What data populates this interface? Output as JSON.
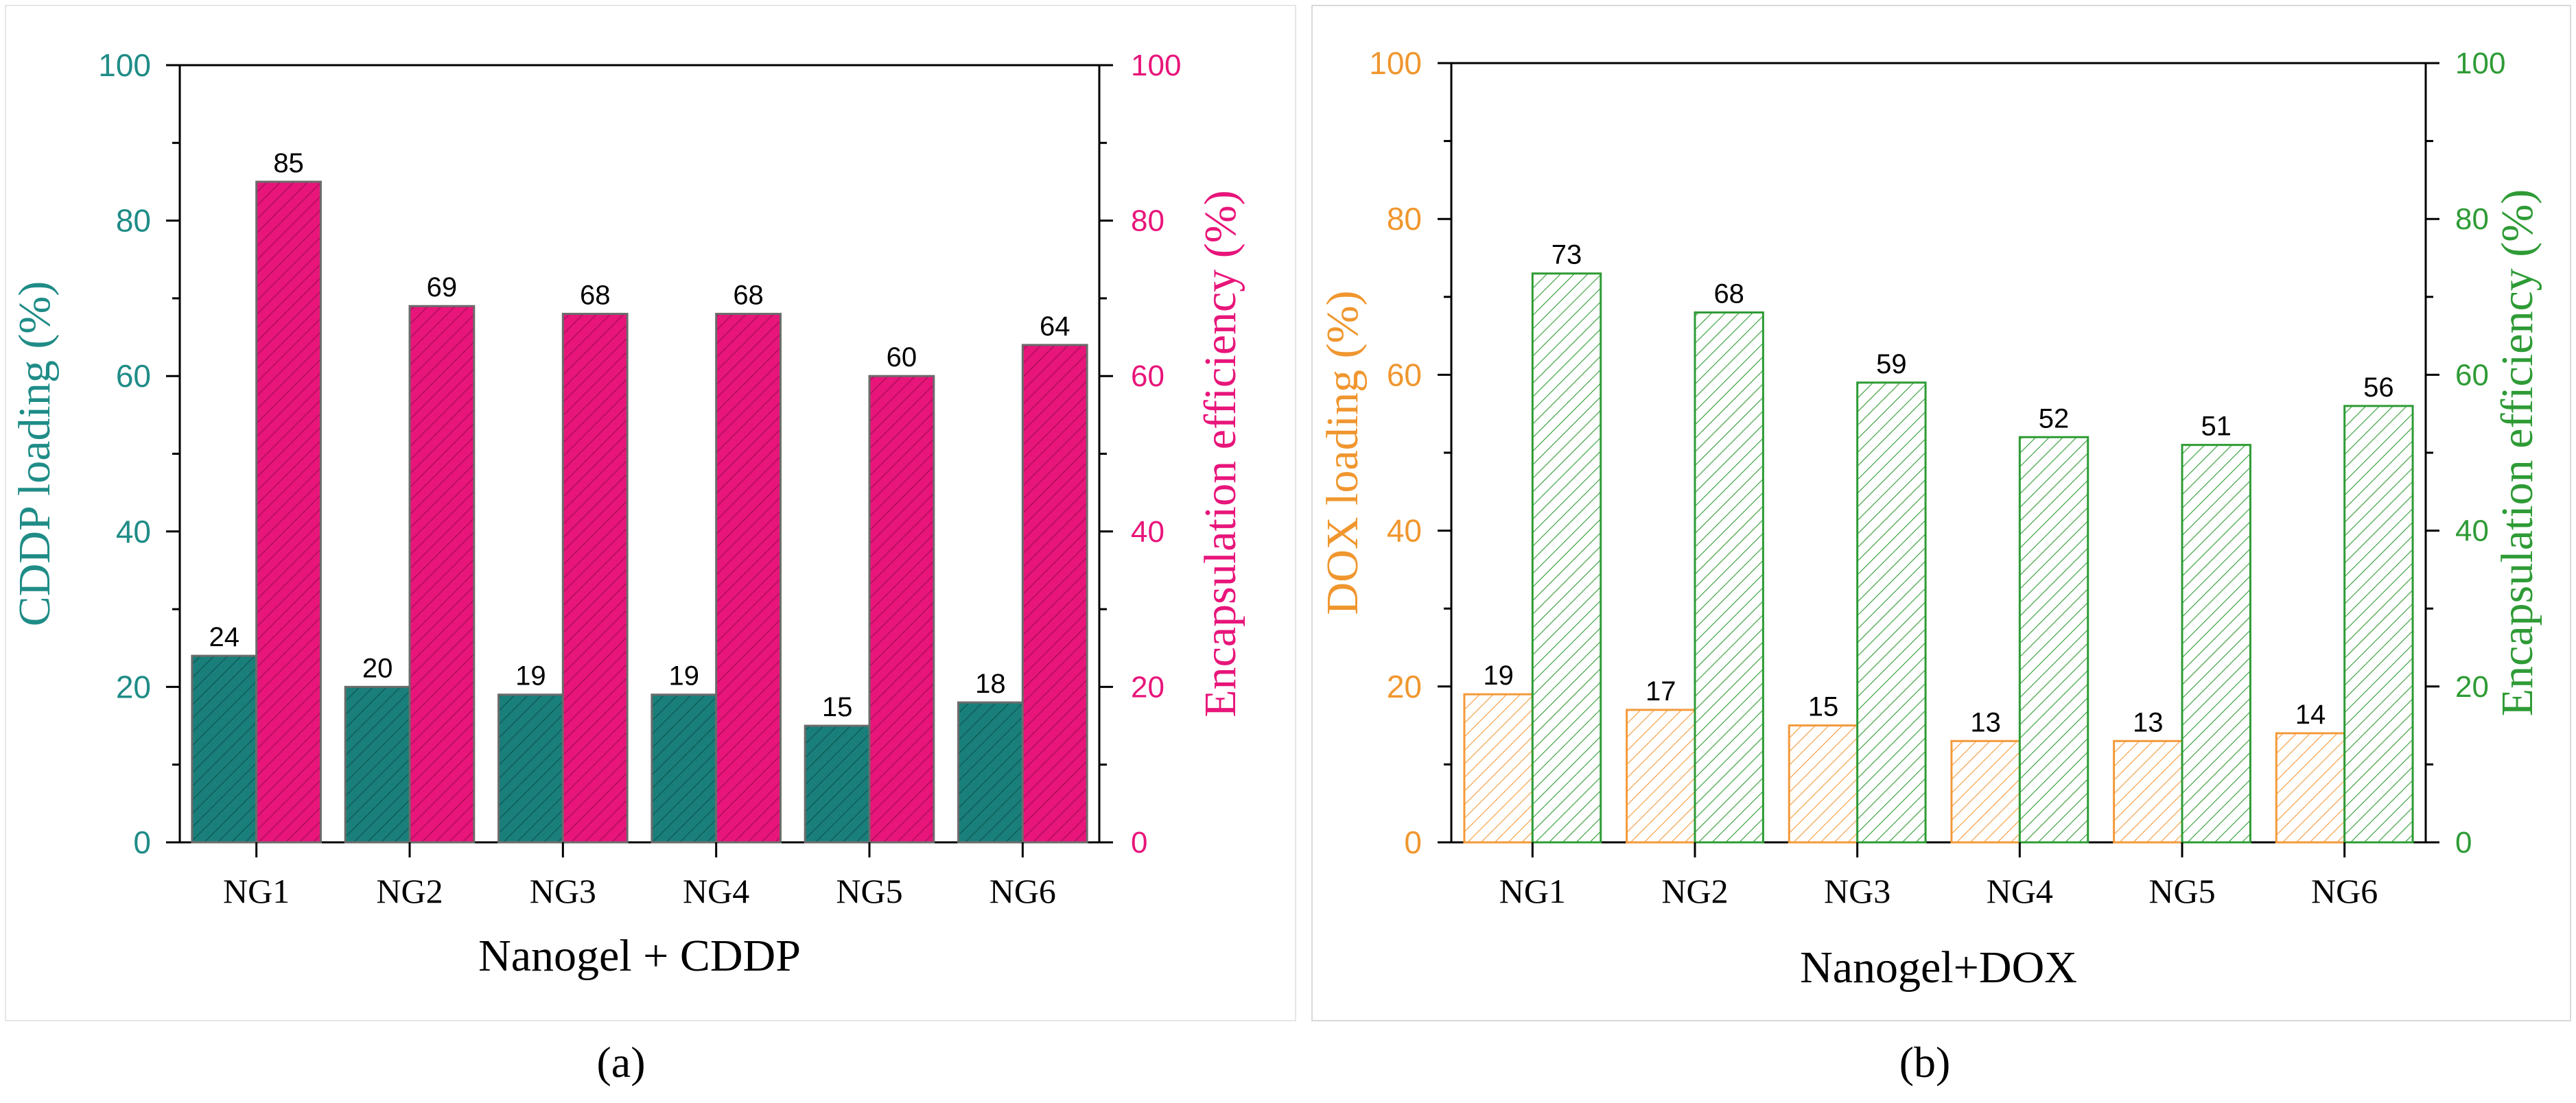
{
  "colors": {
    "cddp_loading": "#1a7f7a",
    "cddp_efficiency": "#e8157a",
    "dox_loading": "#f39a3a",
    "dox_efficiency": "#2e9b35",
    "panel_a_left_axis": "#1f8c87",
    "panel_a_right_axis": "#e8157a",
    "panel_b_left_axis": "#f0962e",
    "panel_b_right_axis": "#2e9b35",
    "bar_outline_a": "#6b6b6b"
  },
  "chart_data": [
    {
      "type": "bar",
      "panel_label": "a",
      "panel_label_text": "(a)",
      "xlabel": "Nanogel + CDDP",
      "ylabel_left": "CDDP loading (%)",
      "ylabel_right": "Encapsulation efficiency (%)",
      "ylim_left": [
        0,
        100
      ],
      "ylim_right": [
        0,
        100
      ],
      "yticks_left": [
        0,
        20,
        40,
        60,
        80,
        100
      ],
      "yticks_right": [
        0,
        20,
        40,
        60,
        80,
        100
      ],
      "categories": [
        "NG1",
        "NG2",
        "NG3",
        "NG4",
        "NG5",
        "NG6"
      ],
      "series": [
        {
          "name": "CDDP loading",
          "axis": "left",
          "values": [
            24,
            20,
            19,
            19,
            15,
            18
          ],
          "labels": [
            "24",
            "20",
            "19",
            "19",
            "15",
            "18"
          ]
        },
        {
          "name": "Encapsulation efficiency",
          "axis": "right",
          "values": [
            85,
            69,
            68,
            68,
            60,
            64
          ],
          "labels": [
            "85",
            "69",
            "68",
            "68",
            "60",
            "64"
          ]
        }
      ]
    },
    {
      "type": "bar",
      "panel_label": "b",
      "panel_label_text": "(b)",
      "xlabel": "Nanogel+DOX",
      "ylabel_left": "DOX loading (%)",
      "ylabel_right": "Encapsulation efficiency (%)",
      "ylim_left": [
        0,
        100
      ],
      "ylim_right": [
        0,
        100
      ],
      "yticks_left": [
        0,
        20,
        40,
        60,
        80,
        100
      ],
      "yticks_right": [
        0,
        20,
        40,
        60,
        80,
        100
      ],
      "categories": [
        "NG1",
        "NG2",
        "NG3",
        "NG4",
        "NG5",
        "NG6"
      ],
      "series": [
        {
          "name": "DOX loading",
          "axis": "left",
          "values": [
            19,
            17,
            15,
            13,
            13,
            14
          ],
          "labels": [
            "19",
            "17",
            "15",
            "13",
            "13",
            "14"
          ]
        },
        {
          "name": "Encapsulation efficiency",
          "axis": "right",
          "values": [
            73,
            68,
            59,
            52,
            51,
            56
          ],
          "labels": [
            "73",
            "68",
            "59",
            "52",
            "51",
            "56"
          ]
        }
      ]
    }
  ]
}
